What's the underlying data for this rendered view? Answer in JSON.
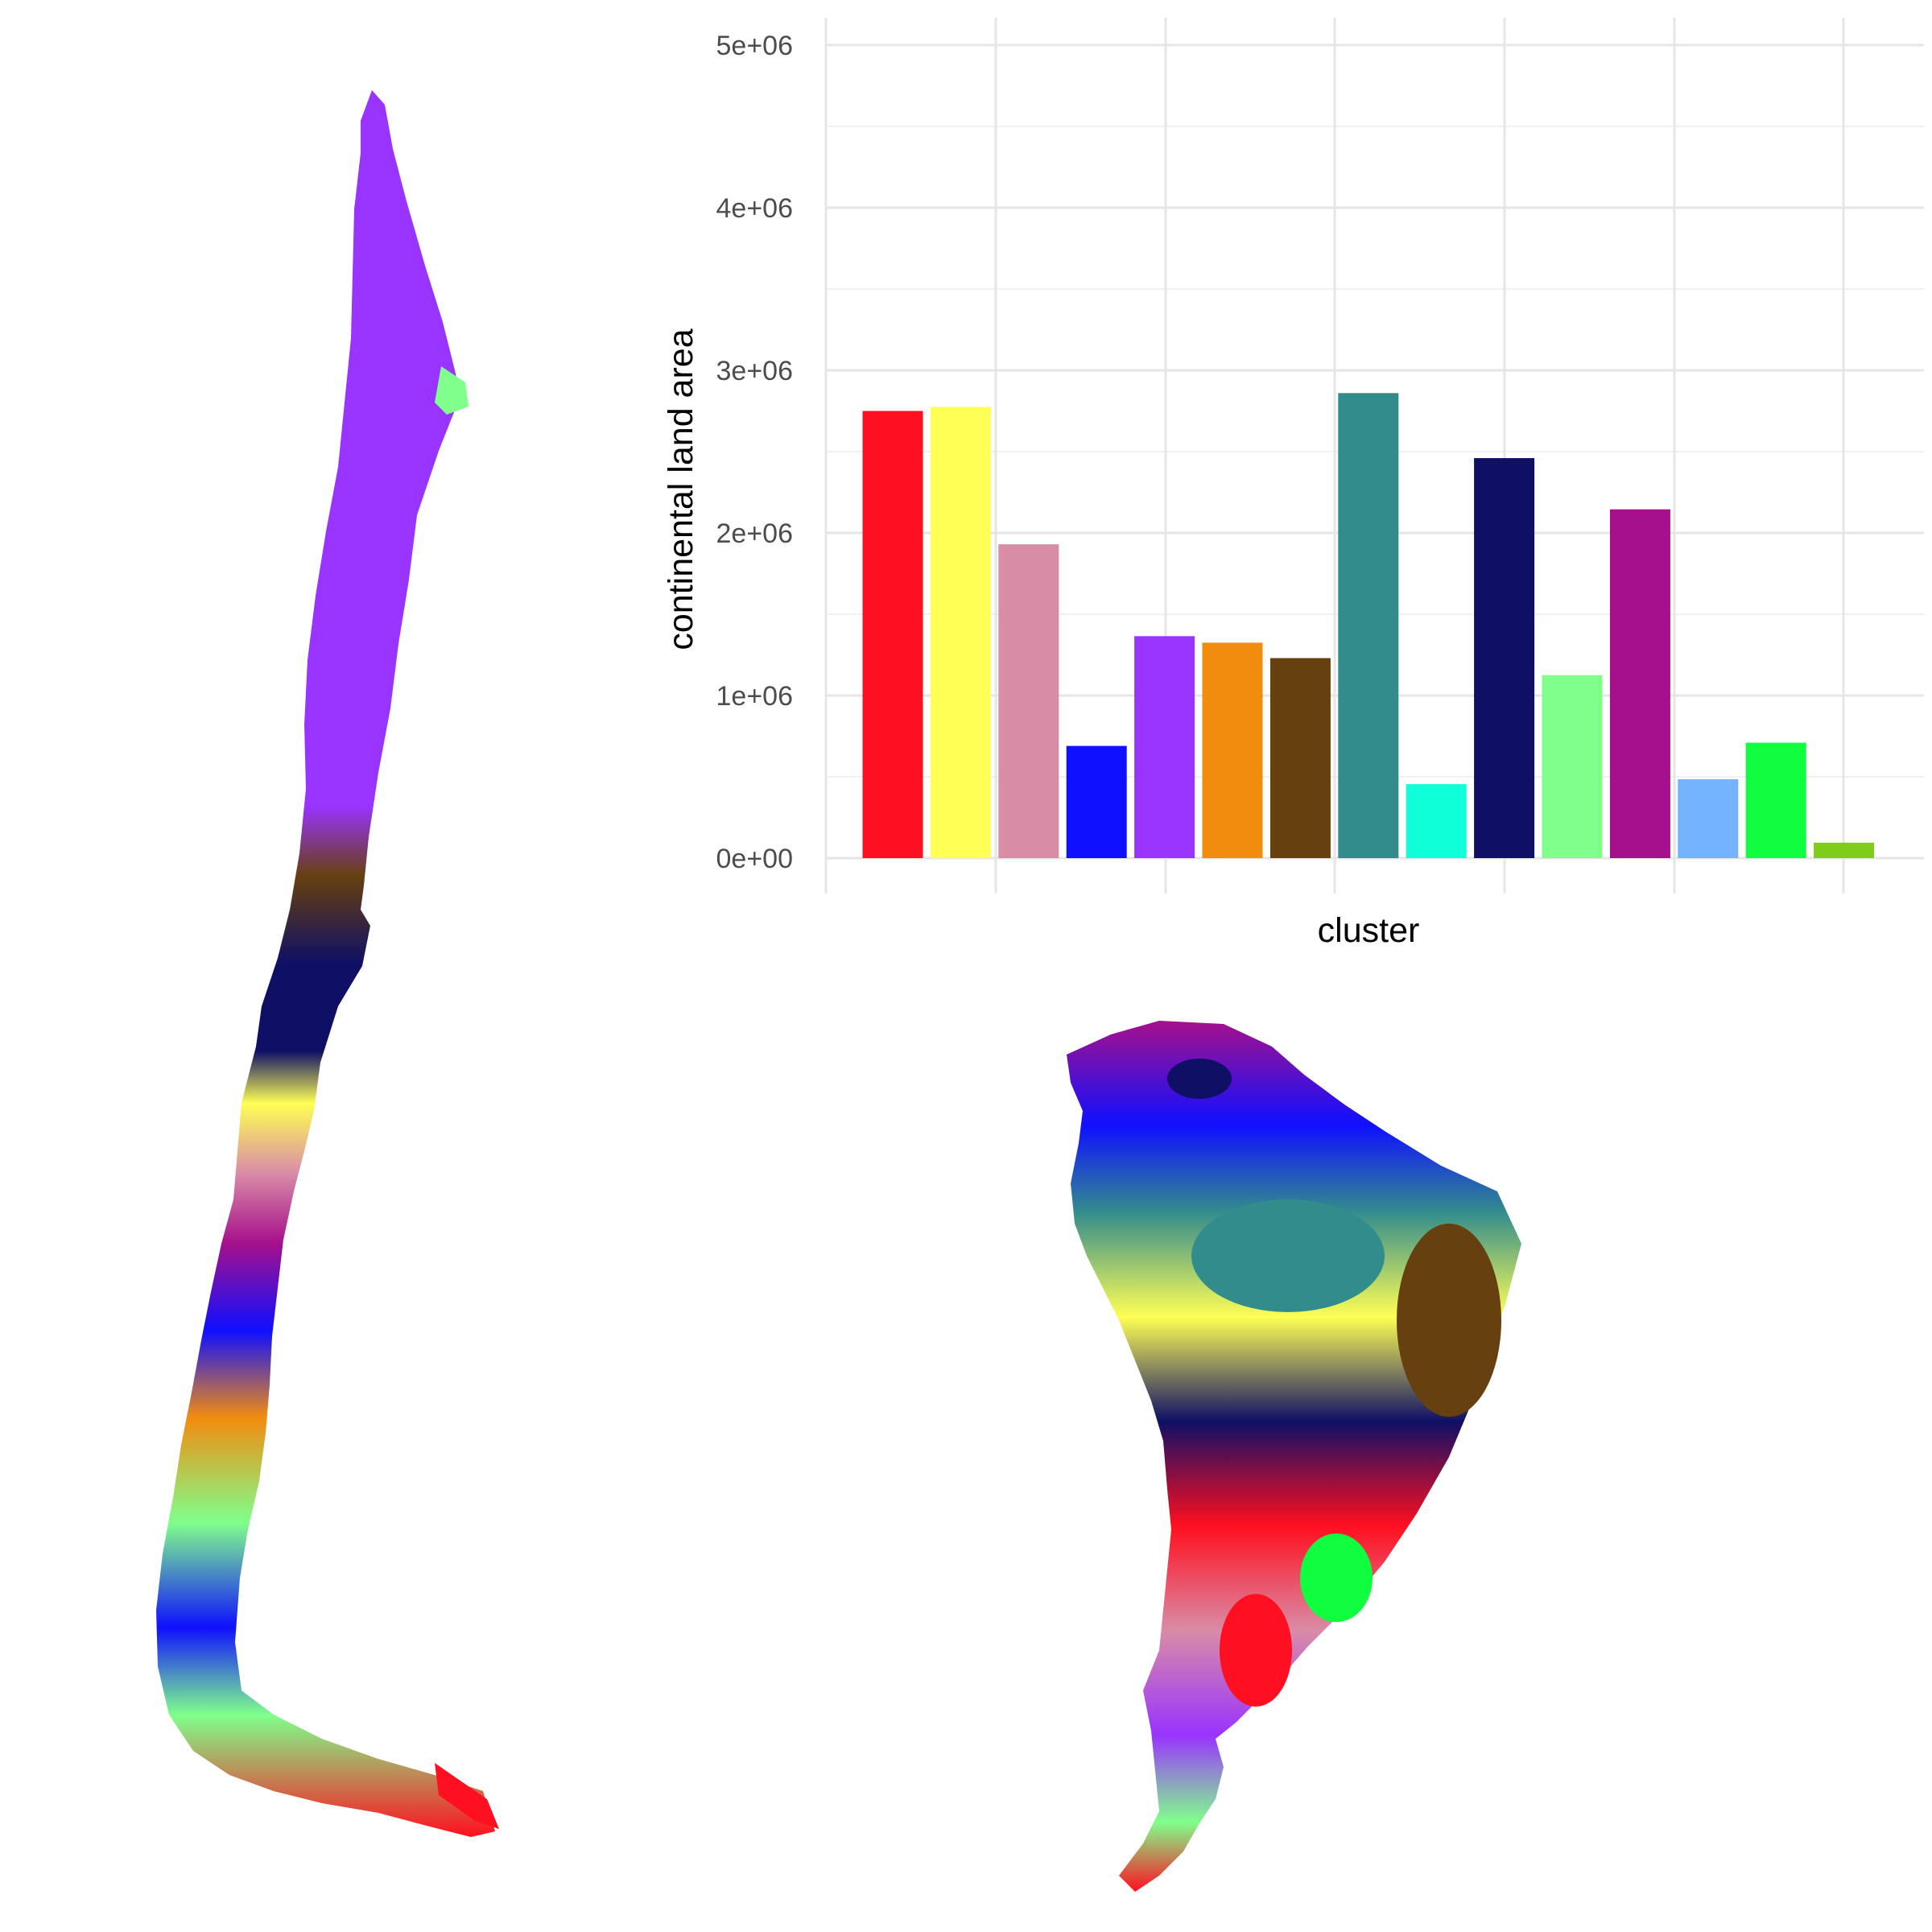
{
  "chart_data": {
    "type": "bar",
    "xlabel": "cluster",
    "ylabel": "continental land area",
    "ylim": [
      0,
      5000000
    ],
    "yticks": [
      {
        "value": 0,
        "label": "0e+00"
      },
      {
        "value": 1000000,
        "label": "1e+06"
      },
      {
        "value": 2000000,
        "label": "2e+06"
      },
      {
        "value": 3000000,
        "label": "3e+06"
      },
      {
        "value": 4000000,
        "label": "4e+06"
      },
      {
        "value": 5000000,
        "label": "5e+06"
      }
    ],
    "grid": true,
    "legend": "none",
    "x_tick_labels_shown": false,
    "values": [
      2750000,
      2775000,
      1930000,
      690000,
      1365000,
      1325000,
      1230000,
      2860000,
      455000,
      2460000,
      1125000,
      2145000,
      485000,
      710000,
      95000
    ],
    "colors": [
      "#ff0f1f",
      "#ffff55",
      "#d98ca6",
      "#0f0fff",
      "#9933ff",
      "#f28c0f",
      "#66400f",
      "#338c8c",
      "#0fffd9",
      "#0f0f66",
      "#80ff8c",
      "#a6108c",
      "#73b3ff",
      "#0fff40",
      "#80cc1a"
    ]
  },
  "maps": [
    {
      "id": "chile-cluster-map",
      "region": "Chile"
    },
    {
      "id": "south-america-cluster-map",
      "region": "South America"
    }
  ]
}
